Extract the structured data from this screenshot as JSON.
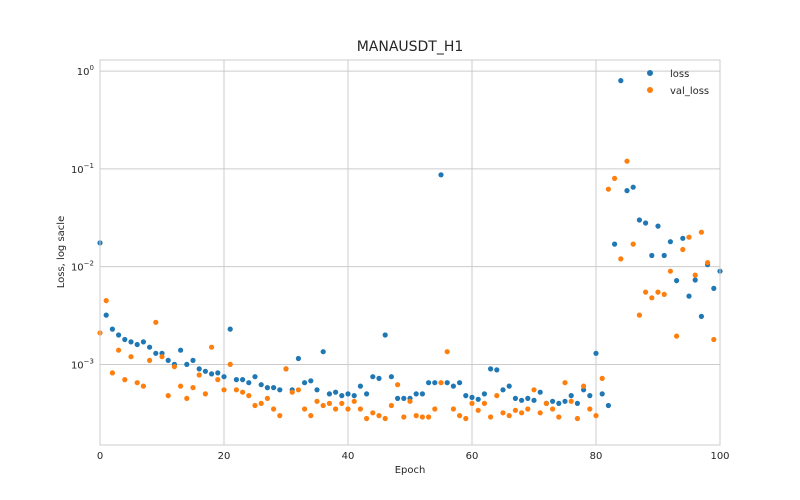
{
  "chart_data": {
    "type": "scatter",
    "title": "MANAUSDT_H1",
    "xlabel": "Epoch",
    "ylabel": "Loss, log sacle",
    "xlim": [
      0,
      100
    ],
    "ylim": [
      0.00015,
      1.3
    ],
    "yscale": "log",
    "grid": true,
    "legend": "top-right",
    "x_ticks": [
      0,
      20,
      40,
      60,
      80,
      100
    ],
    "y_ticks": [
      {
        "value": 0.001,
        "base": "10",
        "exp": "−3"
      },
      {
        "value": 0.01,
        "base": "10",
        "exp": "−2"
      },
      {
        "value": 0.1,
        "base": "10",
        "exp": "−1"
      },
      {
        "value": 1,
        "base": "10",
        "exp": "0"
      }
    ],
    "series": [
      {
        "name": "loss",
        "color": "#1f77b4",
        "values": [
          0.0175,
          0.0032,
          0.0023,
          0.002,
          0.0018,
          0.0017,
          0.0016,
          0.0017,
          0.0015,
          0.0013,
          0.0013,
          0.0011,
          0.001,
          0.0014,
          0.001,
          0.0011,
          0.0009,
          0.00085,
          0.0008,
          0.00082,
          0.00075,
          0.0023,
          0.0007,
          0.0007,
          0.00065,
          0.00075,
          0.00062,
          0.00058,
          0.00058,
          0.00055,
          0.0009,
          0.00055,
          0.00115,
          0.00065,
          0.00068,
          0.00055,
          0.00135,
          0.0005,
          0.00052,
          0.00048,
          0.0005,
          0.00048,
          0.0006,
          0.0005,
          0.00075,
          0.00072,
          0.002,
          0.00075,
          0.00045,
          0.00045,
          0.00045,
          0.0005,
          0.0005,
          0.00065,
          0.00065,
          0.087,
          0.00065,
          0.0006,
          0.00065,
          0.00048,
          0.00046,
          0.00044,
          0.0005,
          0.0009,
          0.00088,
          0.00055,
          0.0006,
          0.00045,
          0.00043,
          0.00045,
          0.00043,
          0.00052,
          0.0004,
          0.00042,
          0.0004,
          0.00042,
          0.00048,
          0.0004,
          0.00055,
          0.00048,
          0.0013,
          0.0005,
          0.00038,
          0.017,
          0.8,
          0.06,
          0.065,
          0.03,
          0.028,
          0.013,
          0.026,
          0.013,
          0.018,
          0.0072,
          0.0195,
          0.005,
          0.0073,
          0.0031,
          0.0105,
          0.006,
          0.009
        ]
      },
      {
        "name": "val_loss",
        "color": "#ff7f0e",
        "values": [
          0.0021,
          0.0045,
          0.00082,
          0.0014,
          0.0007,
          0.0012,
          0.00065,
          0.0006,
          0.0011,
          0.0027,
          0.0012,
          0.00048,
          0.00095,
          0.0006,
          0.00045,
          0.00058,
          0.00078,
          0.0005,
          0.0015,
          0.0007,
          0.00055,
          0.001,
          0.00055,
          0.00052,
          0.00048,
          0.00038,
          0.0004,
          0.00045,
          0.00035,
          0.0003,
          0.0009,
          0.00052,
          0.00055,
          0.00035,
          0.0003,
          0.00042,
          0.00038,
          0.0004,
          0.00035,
          0.0004,
          0.00035,
          0.00042,
          0.00035,
          0.00028,
          0.00032,
          0.0003,
          0.00028,
          0.00038,
          0.00062,
          0.00029,
          0.00042,
          0.0003,
          0.00029,
          0.00029,
          0.00035,
          0.00065,
          0.00135,
          0.00035,
          0.0003,
          0.00028,
          0.0004,
          0.00034,
          0.0004,
          0.00029,
          0.00048,
          0.00032,
          0.0003,
          0.00034,
          0.00032,
          0.00035,
          0.00055,
          0.00032,
          0.0004,
          0.00035,
          0.00029,
          0.00065,
          0.00042,
          0.00028,
          0.0006,
          0.00035,
          0.0003,
          0.00072,
          0.062,
          0.08,
          0.012,
          0.12,
          0.017,
          0.0032,
          0.0055,
          0.0048,
          0.0055,
          0.0052,
          0.009,
          0.00195,
          0.015,
          0.02,
          0.0082,
          0.0225,
          0.011,
          0.0018
        ]
      }
    ]
  }
}
